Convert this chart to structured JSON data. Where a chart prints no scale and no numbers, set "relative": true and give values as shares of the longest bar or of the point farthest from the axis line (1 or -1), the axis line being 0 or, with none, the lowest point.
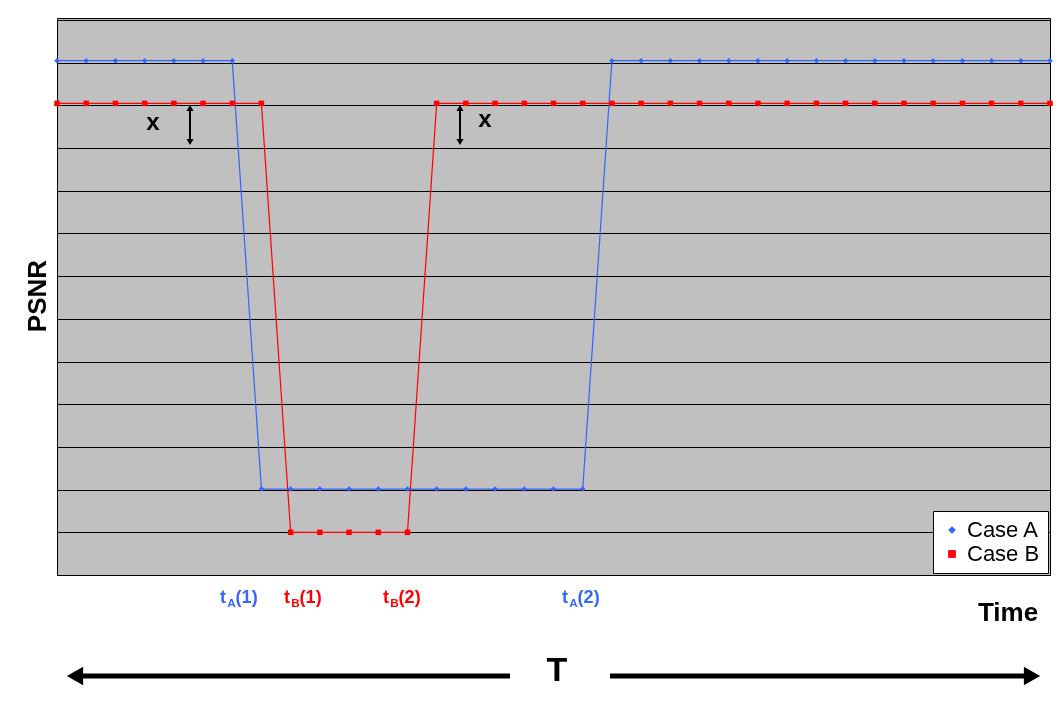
{
  "chart_data": {
    "type": "line",
    "relative": true,
    "xlabel": "Time",
    "ylabel": "PSNR",
    "categories": [
      null,
      null,
      null,
      null,
      null,
      null,
      null,
      null,
      null,
      null,
      null,
      null,
      null,
      null,
      null,
      null,
      null,
      null,
      null,
      null,
      null,
      null,
      null,
      null,
      null,
      null,
      null,
      null,
      null,
      null,
      null,
      null,
      null,
      null,
      null
    ],
    "series": [
      {
        "name": "Case A",
        "color": "#3366ff",
        "marker": "diamond",
        "values": [
          1,
          1,
          1,
          1,
          1,
          1,
          1,
          0.167,
          0.167,
          0.167,
          0.167,
          0.167,
          0.167,
          0.167,
          0.167,
          0.167,
          0.167,
          0.167,
          0.167,
          1,
          1,
          1,
          1,
          1,
          1,
          1,
          1,
          1,
          1,
          1,
          1,
          1,
          1,
          1,
          1
        ]
      },
      {
        "name": "Case B",
        "color": "#ff0000",
        "marker": "square",
        "values": [
          0.917,
          0.917,
          0.917,
          0.917,
          0.917,
          0.917,
          0.917,
          0.917,
          0.083,
          0.083,
          0.083,
          0.083,
          0.083,
          0.917,
          0.917,
          0.917,
          0.917,
          0.917,
          0.917,
          0.917,
          0.917,
          0.917,
          0.917,
          0.917,
          0.917,
          0.917,
          0.917,
          0.917,
          0.917,
          0.917,
          0.917,
          0.917,
          0.917,
          0.917,
          0.917
        ]
      }
    ],
    "annotations": [
      "x",
      "x",
      "t$_{A}$(1)",
      "t$_{B}$(1)",
      "t$_{B}$(2)",
      "t$_{A}$(2)",
      "T"
    ],
    "grid": "y",
    "legend": "bottom right"
  }
}
